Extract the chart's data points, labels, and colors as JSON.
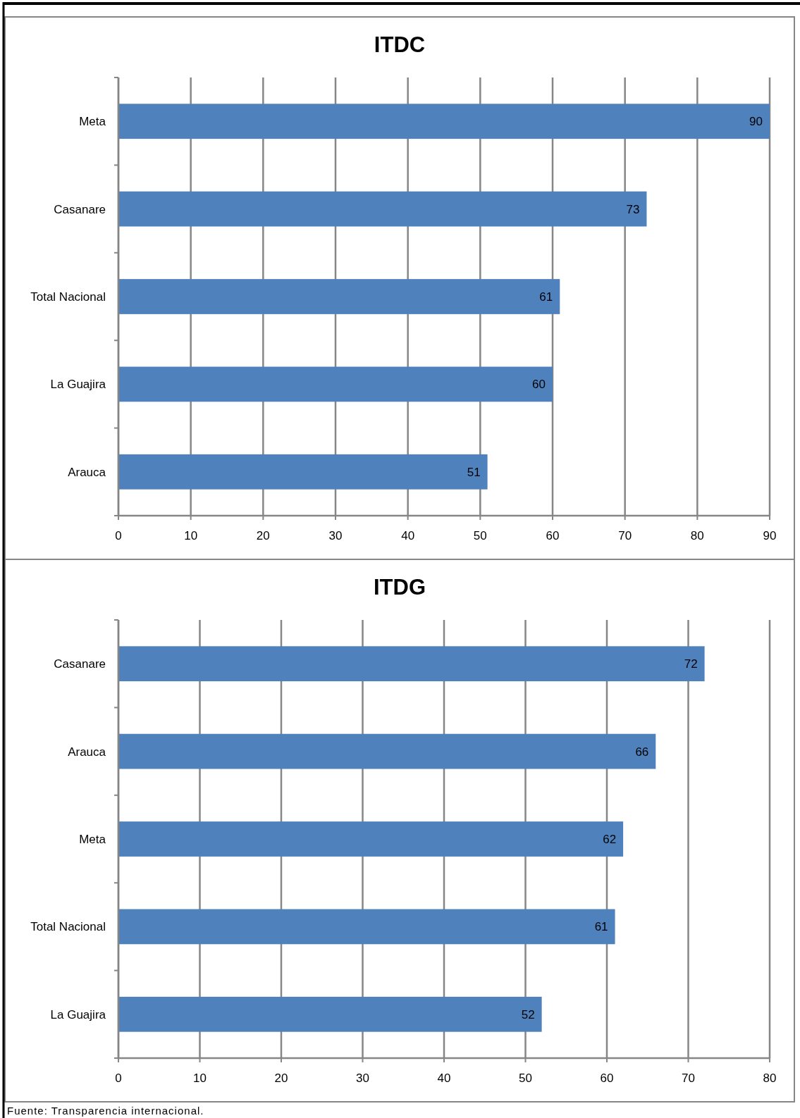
{
  "chart_data": [
    {
      "type": "bar",
      "orientation": "horizontal",
      "title": "ITDC",
      "categories": [
        "Meta",
        "Casanare",
        "Total Nacional",
        "La Guajira",
        "Arauca"
      ],
      "values": [
        90,
        73,
        61,
        60,
        51
      ],
      "color": "#4f81bd",
      "xlim": [
        0,
        90
      ],
      "xticks": [
        0,
        10,
        20,
        30,
        40,
        50,
        60,
        70,
        80,
        90
      ],
      "grid": "x",
      "data_labels": true
    },
    {
      "type": "bar",
      "orientation": "horizontal",
      "title": "ITDG",
      "categories": [
        "Casanare",
        "Arauca",
        "Meta",
        "Total Nacional",
        "La Guajira"
      ],
      "values": [
        72,
        66,
        62,
        61,
        52
      ],
      "color": "#4f81bd",
      "xlim": [
        0,
        80
      ],
      "xticks": [
        0,
        10,
        20,
        30,
        40,
        50,
        60,
        70,
        80
      ],
      "grid": "x",
      "data_labels": true,
      "annotations": [
        "Fuente: Transparencia internacional."
      ]
    }
  ]
}
